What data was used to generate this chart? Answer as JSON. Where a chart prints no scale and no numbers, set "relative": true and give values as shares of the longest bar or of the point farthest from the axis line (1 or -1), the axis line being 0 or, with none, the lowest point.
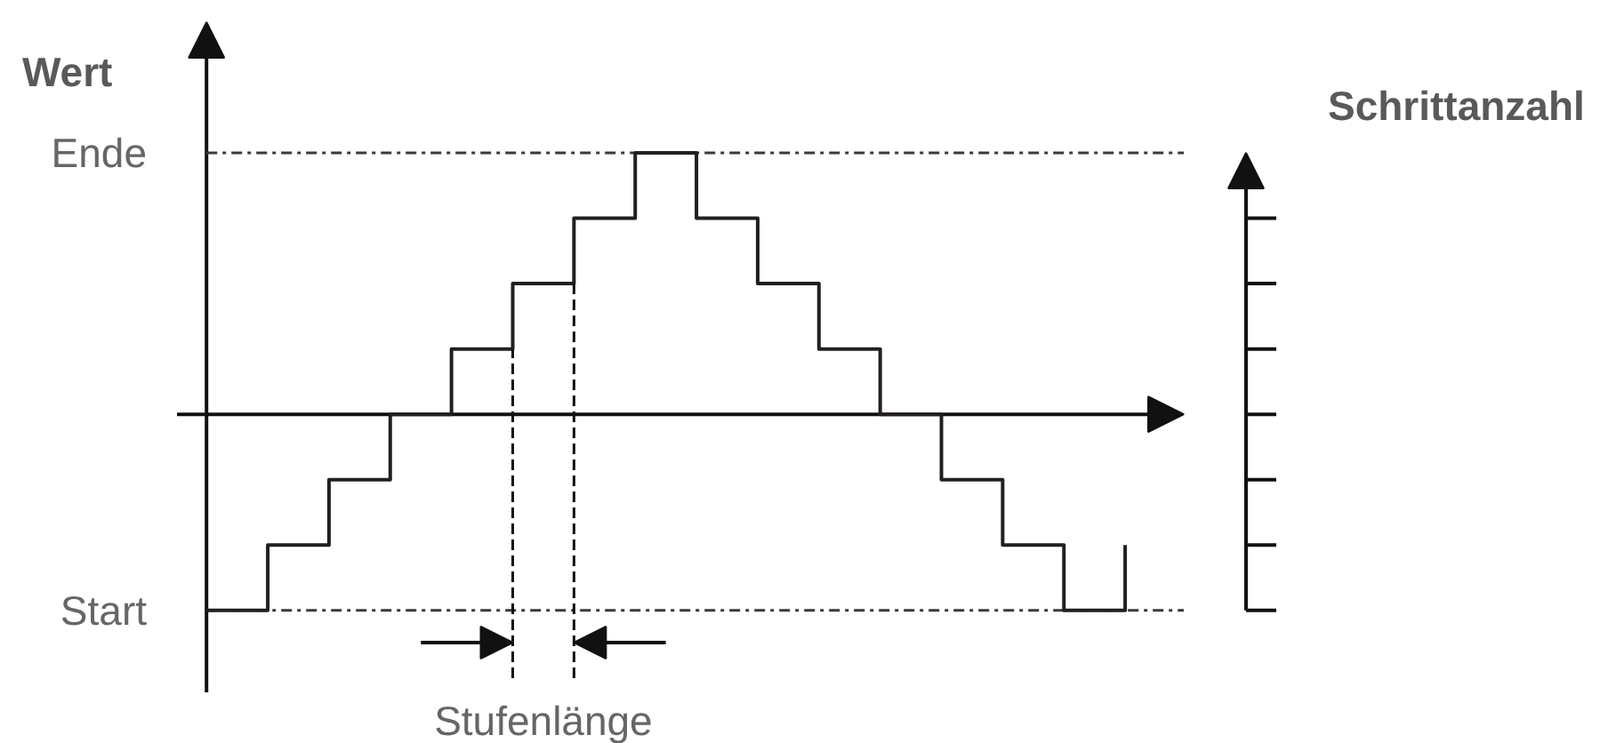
{
  "chart_data": {
    "type": "step",
    "relative": true,
    "ylabel": "Wert",
    "y2label": "Schrittanzahl",
    "categories": [
      null,
      null,
      null,
      null,
      null,
      null,
      null,
      null,
      null,
      null,
      null,
      null,
      null,
      null,
      null,
      null
    ],
    "series": [
      {
        "color": "#231f20",
        "values": [
          -0.75,
          -0.5,
          -0.25,
          0,
          0.25,
          0.5,
          0.75,
          1,
          0.75,
          0.5,
          0.25,
          0,
          -0.25,
          -0.5,
          -0.75,
          -0.5
        ]
      }
    ],
    "ref_lines": [
      {
        "axis": "y",
        "value": 1,
        "label": "Ende",
        "line_style": "dashdot",
        "color": "#3a3a3a"
      },
      {
        "axis": "y",
        "value": -0.75,
        "label": "Start",
        "line_style": "dashdot",
        "color": "#3a3a3a"
      }
    ],
    "annotations": [
      "Stufenlänge"
    ]
  }
}
